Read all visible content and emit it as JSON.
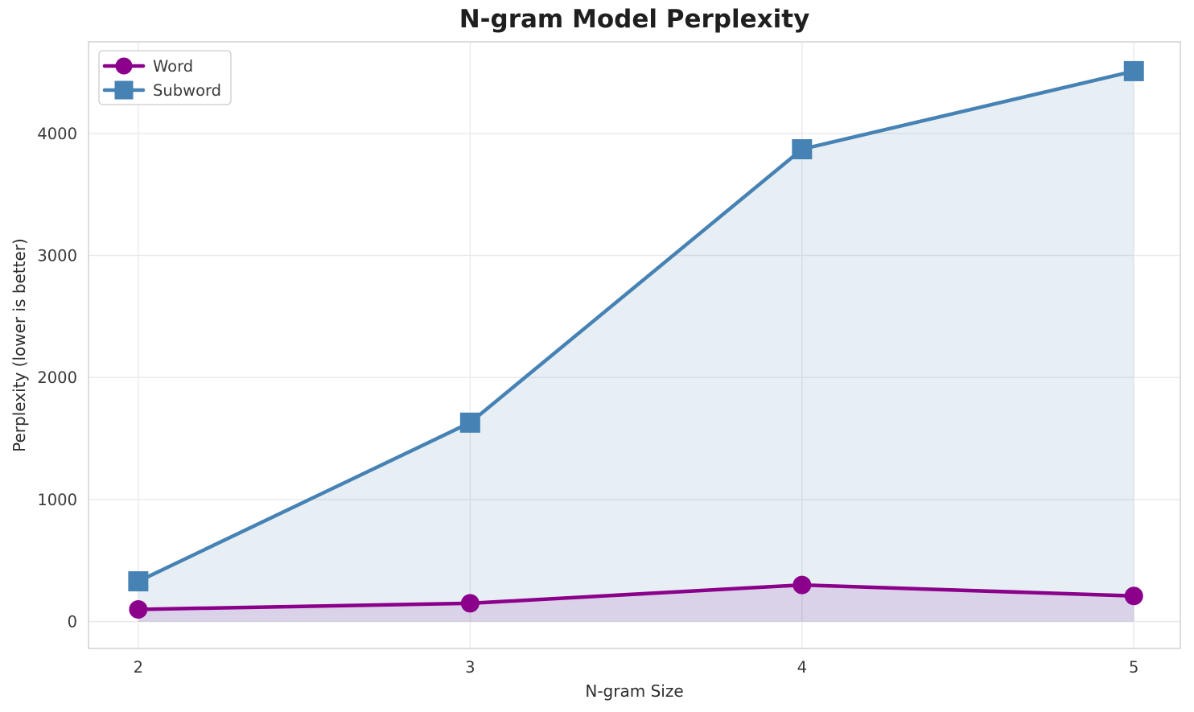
{
  "page": {
    "background": "#ffffff"
  },
  "chart_data": {
    "type": "line",
    "title": "N-gram Model Perplexity",
    "xlabel": "N-gram Size",
    "ylabel": "Perplexity (lower is better)",
    "x": [
      2,
      3,
      4,
      5
    ],
    "series": [
      {
        "name": "Word",
        "values": [
          100,
          150,
          300,
          210
        ],
        "color": "#8B008B",
        "marker": "circle",
        "fill_alpha": 0.13
      },
      {
        "name": "Subword",
        "values": [
          330,
          1630,
          3870,
          4510
        ],
        "color": "#4682B4",
        "marker": "square",
        "fill_alpha": 0.13
      }
    ],
    "xticks": [
      "2",
      "3",
      "4",
      "5"
    ],
    "xtick_values": [
      2,
      3,
      4,
      5
    ],
    "yticks": [
      "0",
      "1000",
      "2000",
      "3000",
      "4000"
    ],
    "ytick_values": [
      0,
      1000,
      2000,
      3000,
      4000
    ],
    "xlim": [
      1.85,
      5.14
    ],
    "ylim": [
      -220,
      4750
    ],
    "grid": true,
    "fill_to_zero": true,
    "legend": {
      "position": "upper-left",
      "entries": [
        "Word",
        "Subword"
      ]
    }
  },
  "colors": {
    "background": "#ffffff",
    "grid": "#eaeaea",
    "spine": "#d4d4d4",
    "title_text": "#1f1f1f",
    "tick_text": "#3a3a3a",
    "label_text": "#2e2e2e",
    "legend_border": "#cccccc",
    "legend_bg": "#ffffff"
  }
}
